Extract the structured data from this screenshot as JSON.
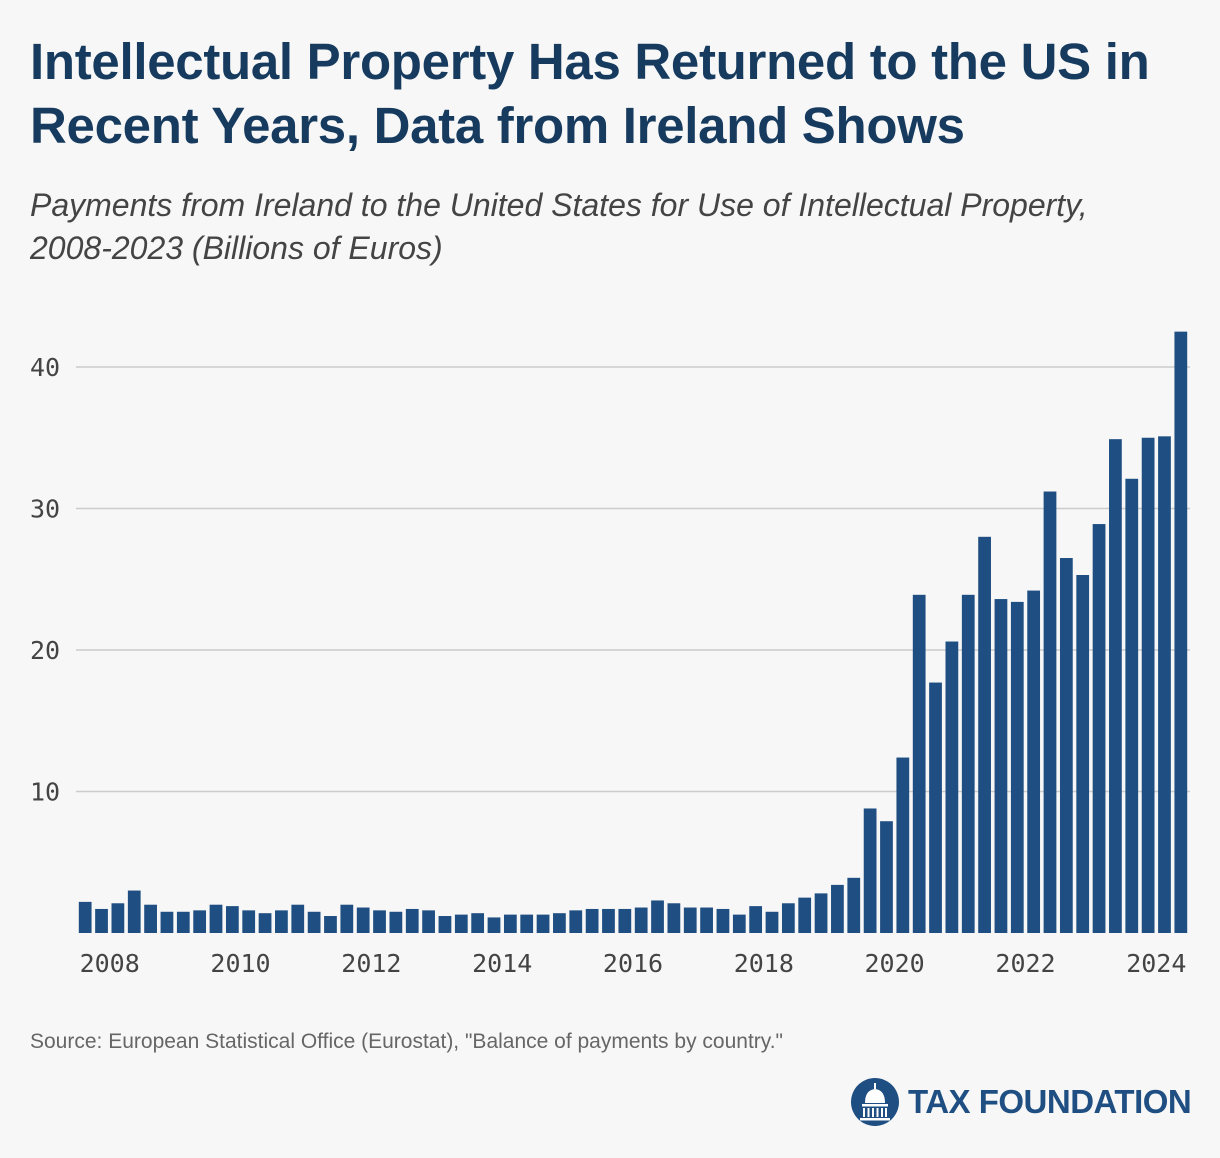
{
  "header": {
    "title": "Intellectual Property Has Returned to the US in Recent Years, Data from Ireland Shows",
    "subtitle": "Payments from Ireland to the United States for Use of Intellectual Property, 2008-2023 (Billions of Euros)"
  },
  "footer": {
    "source": "Source: European Statistical Office (Eurostat), \"Balance of payments by country.\"",
    "logo_text": "TAX FOUNDATION"
  },
  "colors": {
    "bar": "#1f4e82",
    "grid": "#cccccc",
    "title": "#173b5f"
  },
  "chart_data": {
    "type": "bar",
    "title": "Payments from Ireland to the United States for Use of Intellectual Property, 2008-2023 (Billions of Euros)",
    "xlabel": "",
    "ylabel": "",
    "ylim": [
      0,
      42.5
    ],
    "yticks": [
      10,
      20,
      30,
      40
    ],
    "xticks": [
      "2008",
      "2010",
      "2012",
      "2014",
      "2016",
      "2018",
      "2020",
      "2022",
      "2024"
    ],
    "grid": true,
    "categories": [
      "2008Q1",
      "2008Q2",
      "2008Q3",
      "2008Q4",
      "2009Q1",
      "2009Q2",
      "2009Q3",
      "2009Q4",
      "2010Q1",
      "2010Q2",
      "2010Q3",
      "2010Q4",
      "2011Q1",
      "2011Q2",
      "2011Q3",
      "2011Q4",
      "2012Q1",
      "2012Q2",
      "2012Q3",
      "2012Q4",
      "2013Q1",
      "2013Q2",
      "2013Q3",
      "2013Q4",
      "2014Q1",
      "2014Q2",
      "2014Q3",
      "2014Q4",
      "2015Q1",
      "2015Q2",
      "2015Q3",
      "2015Q4",
      "2016Q1",
      "2016Q2",
      "2016Q3",
      "2016Q4",
      "2017Q1",
      "2017Q2",
      "2017Q3",
      "2017Q4",
      "2018Q1",
      "2018Q2",
      "2018Q3",
      "2018Q4",
      "2019Q1",
      "2019Q2",
      "2019Q3",
      "2019Q4",
      "2020Q1",
      "2020Q2",
      "2020Q3",
      "2020Q4",
      "2021Q1",
      "2021Q2",
      "2021Q3",
      "2021Q4",
      "2022Q1",
      "2022Q2",
      "2022Q3",
      "2022Q4",
      "2023Q1",
      "2023Q2",
      "2023Q3",
      "2023Q4",
      "2024Q1",
      "2024Q2",
      "2024Q3",
      "2024Q4"
    ],
    "values": [
      2.2,
      1.7,
      2.1,
      3.0,
      2.0,
      1.5,
      1.5,
      1.6,
      2.0,
      1.9,
      1.6,
      1.4,
      1.6,
      2.0,
      1.5,
      1.2,
      2.0,
      1.8,
      1.6,
      1.5,
      1.7,
      1.6,
      1.2,
      1.3,
      1.4,
      1.1,
      1.3,
      1.3,
      1.3,
      1.4,
      1.6,
      1.7,
      1.7,
      1.7,
      1.8,
      2.3,
      2.1,
      1.8,
      1.8,
      1.7,
      1.3,
      1.9,
      1.5,
      2.1,
      2.5,
      2.8,
      3.4,
      3.9,
      8.8,
      7.9,
      12.4,
      23.9,
      17.7,
      20.6,
      23.9,
      28.0,
      23.6,
      23.4,
      24.2,
      31.2,
      26.5,
      25.3,
      28.9,
      34.9,
      32.1,
      35.0,
      35.1,
      42.5
    ]
  }
}
